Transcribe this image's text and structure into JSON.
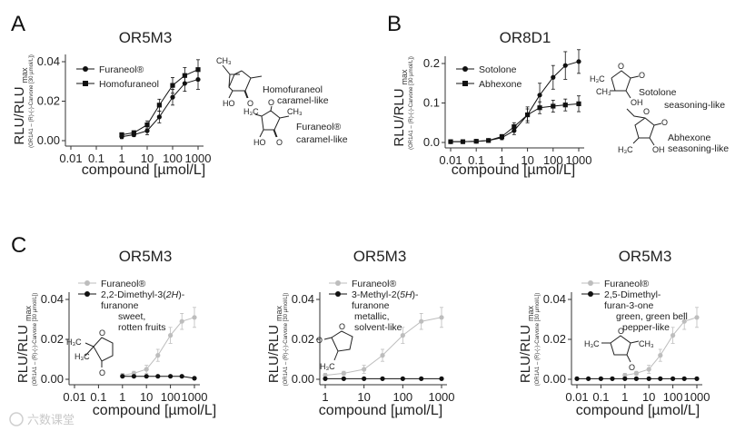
{
  "chart_data": [
    {
      "panel": "A",
      "type": "line",
      "title": "OR5M3",
      "xlabel": "compound [µmol/L]",
      "ylabel": "RLU/RLU",
      "ylabel_sub": "max",
      "ylabel_note": "(OR1A1 – (R)-(-)-Carvone [30 µmol/L])",
      "x_scale": "log",
      "xlim": [
        0.01,
        1000
      ],
      "ylim": [
        0,
        0.04
      ],
      "x_ticks": [
        "0.01",
        "0.1",
        "1",
        "10",
        "100",
        "1000"
      ],
      "y_ticks": [
        "0.00",
        "0.02",
        "0.04"
      ],
      "legend_position": "top-left",
      "series": [
        {
          "name": "Furaneol®",
          "marker": "circle",
          "color": "#111111",
          "x": [
            1,
            3,
            10,
            30,
            100,
            300,
            1000
          ],
          "y": [
            0.002,
            0.003,
            0.005,
            0.012,
            0.022,
            0.029,
            0.031
          ],
          "err": [
            0.001,
            0.001,
            0.002,
            0.003,
            0.004,
            0.004,
            0.005
          ]
        },
        {
          "name": "Homofuraneol",
          "marker": "square",
          "color": "#111111",
          "x": [
            1,
            3,
            10,
            30,
            100,
            300,
            1000
          ],
          "y": [
            0.003,
            0.004,
            0.008,
            0.018,
            0.028,
            0.033,
            0.036
          ],
          "err": [
            0.001,
            0.001,
            0.002,
            0.003,
            0.004,
            0.004,
            0.005
          ]
        }
      ],
      "annotations": [
        "Homofuraneol",
        "caramel-like",
        "Furaneol®",
        "caramel-like"
      ]
    },
    {
      "panel": "B",
      "type": "line",
      "title": "OR8D1",
      "xlabel": "compound [µmol/L]",
      "ylabel": "RLU/RLU",
      "ylabel_sub": "max",
      "ylabel_note": "(OR1A1 – (R)-(-)-Carvone [30 µmol/L])",
      "x_scale": "log",
      "xlim": [
        0.01,
        1000
      ],
      "ylim": [
        0,
        0.2
      ],
      "x_ticks": [
        "0.01",
        "0.1",
        "1",
        "10",
        "100",
        "1000"
      ],
      "y_ticks": [
        "0.0",
        "0.1",
        "0.2"
      ],
      "legend_position": "top-left",
      "series": [
        {
          "name": "Sotolone",
          "marker": "circle",
          "color": "#111111",
          "x": [
            0.01,
            0.03,
            0.1,
            0.3,
            1,
            3,
            10,
            30,
            100,
            300,
            1000
          ],
          "y": [
            0.002,
            0.002,
            0.003,
            0.005,
            0.012,
            0.03,
            0.07,
            0.12,
            0.165,
            0.195,
            0.205
          ],
          "err": [
            0.002,
            0.002,
            0.002,
            0.003,
            0.005,
            0.01,
            0.02,
            0.03,
            0.03,
            0.035,
            0.03
          ]
        },
        {
          "name": "Abhexone",
          "marker": "square",
          "color": "#111111",
          "x": [
            0.01,
            0.03,
            0.1,
            0.3,
            1,
            3,
            10,
            30,
            100,
            300,
            1000
          ],
          "y": [
            0.002,
            0.002,
            0.003,
            0.005,
            0.015,
            0.04,
            0.07,
            0.088,
            0.092,
            0.095,
            0.098
          ],
          "err": [
            0.002,
            0.002,
            0.002,
            0.003,
            0.005,
            0.01,
            0.015,
            0.015,
            0.015,
            0.015,
            0.02
          ]
        }
      ],
      "annotations": [
        "Sotolone",
        "seasoning-like",
        "Abhexone",
        "seasoning-like"
      ]
    },
    {
      "panel": "C1",
      "type": "line",
      "title": "OR5M3",
      "xlabel": "compound [µmol/L]",
      "ylabel": "RLU/RLU",
      "ylabel_sub": "max",
      "ylabel_note": "(OR1A1 – (R)-(-)-Carvone [30 µmol/L])",
      "x_scale": "log",
      "xlim": [
        0.01,
        1000
      ],
      "ylim": [
        0,
        0.04
      ],
      "x_ticks": [
        "0.01",
        "0.1",
        "1",
        "10",
        "100",
        "1000"
      ],
      "y_ticks": [
        "0.00",
        "0.02",
        "0.04"
      ],
      "legend_position": "top-left",
      "series": [
        {
          "name": "Furaneol®",
          "marker": "circle",
          "color": "#bdbdbd",
          "x": [
            1,
            3,
            10,
            30,
            100,
            300,
            1000
          ],
          "y": [
            0.002,
            0.003,
            0.005,
            0.012,
            0.022,
            0.029,
            0.031
          ],
          "err": [
            0.001,
            0.001,
            0.002,
            0.003,
            0.004,
            0.004,
            0.005
          ]
        },
        {
          "name_parts": [
            "2,2-Dimethyl-3(",
            "2H",
            ")-",
            "furanone"
          ],
          "marker": "circle",
          "color": "#111111",
          "x": [
            1,
            3,
            10,
            30,
            100,
            300,
            1000
          ],
          "y": [
            0.0015,
            0.0015,
            0.0015,
            0.0015,
            0.0015,
            0.0015,
            0.0005
          ],
          "err": [
            0,
            0,
            0,
            0,
            0,
            0,
            0
          ]
        }
      ],
      "annotations": [
        "sweet,",
        "rotten fruits"
      ]
    },
    {
      "panel": "C2",
      "type": "line",
      "title": "OR5M3",
      "xlabel": "compound [µmol/L]",
      "ylabel": "RLU/RLU",
      "ylabel_sub": "max",
      "ylabel_note": "(OR1A1 – (R)-(-)-Carvone [30 µmol/L])",
      "x_scale": "log",
      "xlim": [
        1,
        1000
      ],
      "ylim": [
        0,
        0.04
      ],
      "x_ticks": [
        "1",
        "10",
        "100",
        "1000"
      ],
      "y_ticks": [
        "0.00",
        "0.02",
        "0.04"
      ],
      "legend_position": "top-left",
      "series": [
        {
          "name": "Furaneol®",
          "marker": "circle",
          "color": "#bdbdbd",
          "x": [
            1,
            3,
            10,
            30,
            100,
            300,
            1000
          ],
          "y": [
            0.002,
            0.003,
            0.005,
            0.012,
            0.022,
            0.029,
            0.031
          ],
          "err": [
            0.001,
            0.001,
            0.002,
            0.003,
            0.004,
            0.004,
            0.005
          ]
        },
        {
          "name_parts": [
            "3-Methyl-2(",
            "5H",
            ")-",
            "furanone"
          ],
          "marker": "circle",
          "color": "#111111",
          "x": [
            1,
            3,
            10,
            30,
            100,
            300,
            1000
          ],
          "y": [
            0.0003,
            0.0003,
            0.0003,
            0.0003,
            0.0003,
            0.0003,
            0.0003
          ],
          "err": [
            0,
            0,
            0,
            0,
            0,
            0,
            0
          ]
        }
      ],
      "annotations": [
        "metallic,",
        "solvent-like"
      ]
    },
    {
      "panel": "C3",
      "type": "line",
      "title": "OR5M3",
      "xlabel": "compound [µmol/L]",
      "ylabel": "RLU/RLU",
      "ylabel_sub": "max",
      "ylabel_note": "(OR1A1 – (R)-(-)-Carvone [30 µmol/L])",
      "x_scale": "log",
      "xlim": [
        0.01,
        1000
      ],
      "ylim": [
        0,
        0.04
      ],
      "x_ticks": [
        "0.01",
        "0.1",
        "1",
        "10",
        "100",
        "1000"
      ],
      "y_ticks": [
        "0.00",
        "0.02",
        "0.04"
      ],
      "legend_position": "top-left",
      "series": [
        {
          "name": "Furaneol®",
          "marker": "circle",
          "color": "#bdbdbd",
          "x": [
            1,
            3,
            10,
            30,
            100,
            300,
            1000
          ],
          "y": [
            0.002,
            0.003,
            0.005,
            0.012,
            0.022,
            0.029,
            0.031
          ],
          "err": [
            0.001,
            0.001,
            0.002,
            0.003,
            0.004,
            0.004,
            0.005
          ]
        },
        {
          "name_parts": [
            "2,5-Dimethyl-",
            "furan-3-one"
          ],
          "marker": "circle",
          "color": "#111111",
          "x": [
            0.01,
            0.03,
            0.1,
            0.3,
            1,
            3,
            10,
            30,
            100,
            300,
            1000
          ],
          "y": [
            0.0003,
            0.0003,
            0.0003,
            0.0003,
            0.0003,
            0.0003,
            0.0003,
            0.0003,
            0.0003,
            0.0003,
            0.0003
          ],
          "err": [
            0,
            0,
            0,
            0,
            0,
            0,
            0,
            0,
            0,
            0,
            0
          ]
        }
      ],
      "annotations": [
        "green, green bell",
        "pepper-like"
      ]
    }
  ],
  "panel_labels": [
    "A",
    "B",
    "C"
  ],
  "chem_labels": {
    "a_homo": [
      "CH₃",
      "HO",
      "O"
    ],
    "a_fur": [
      "H₃C",
      "O",
      "CH₃",
      "HO",
      "O"
    ],
    "b_sot": [
      "O",
      "O",
      "H₃C",
      "CH₃",
      "OH"
    ],
    "b_abh": [
      "O",
      "O",
      "H₃C",
      "OH"
    ],
    "c1": [
      "O",
      "H₃C",
      "H₃C",
      "O"
    ],
    "c2": [
      "O",
      "O",
      "H₃C"
    ],
    "c3": [
      "O",
      "H₃C",
      "CH₃",
      "O"
    ]
  },
  "watermark": "六数课堂"
}
